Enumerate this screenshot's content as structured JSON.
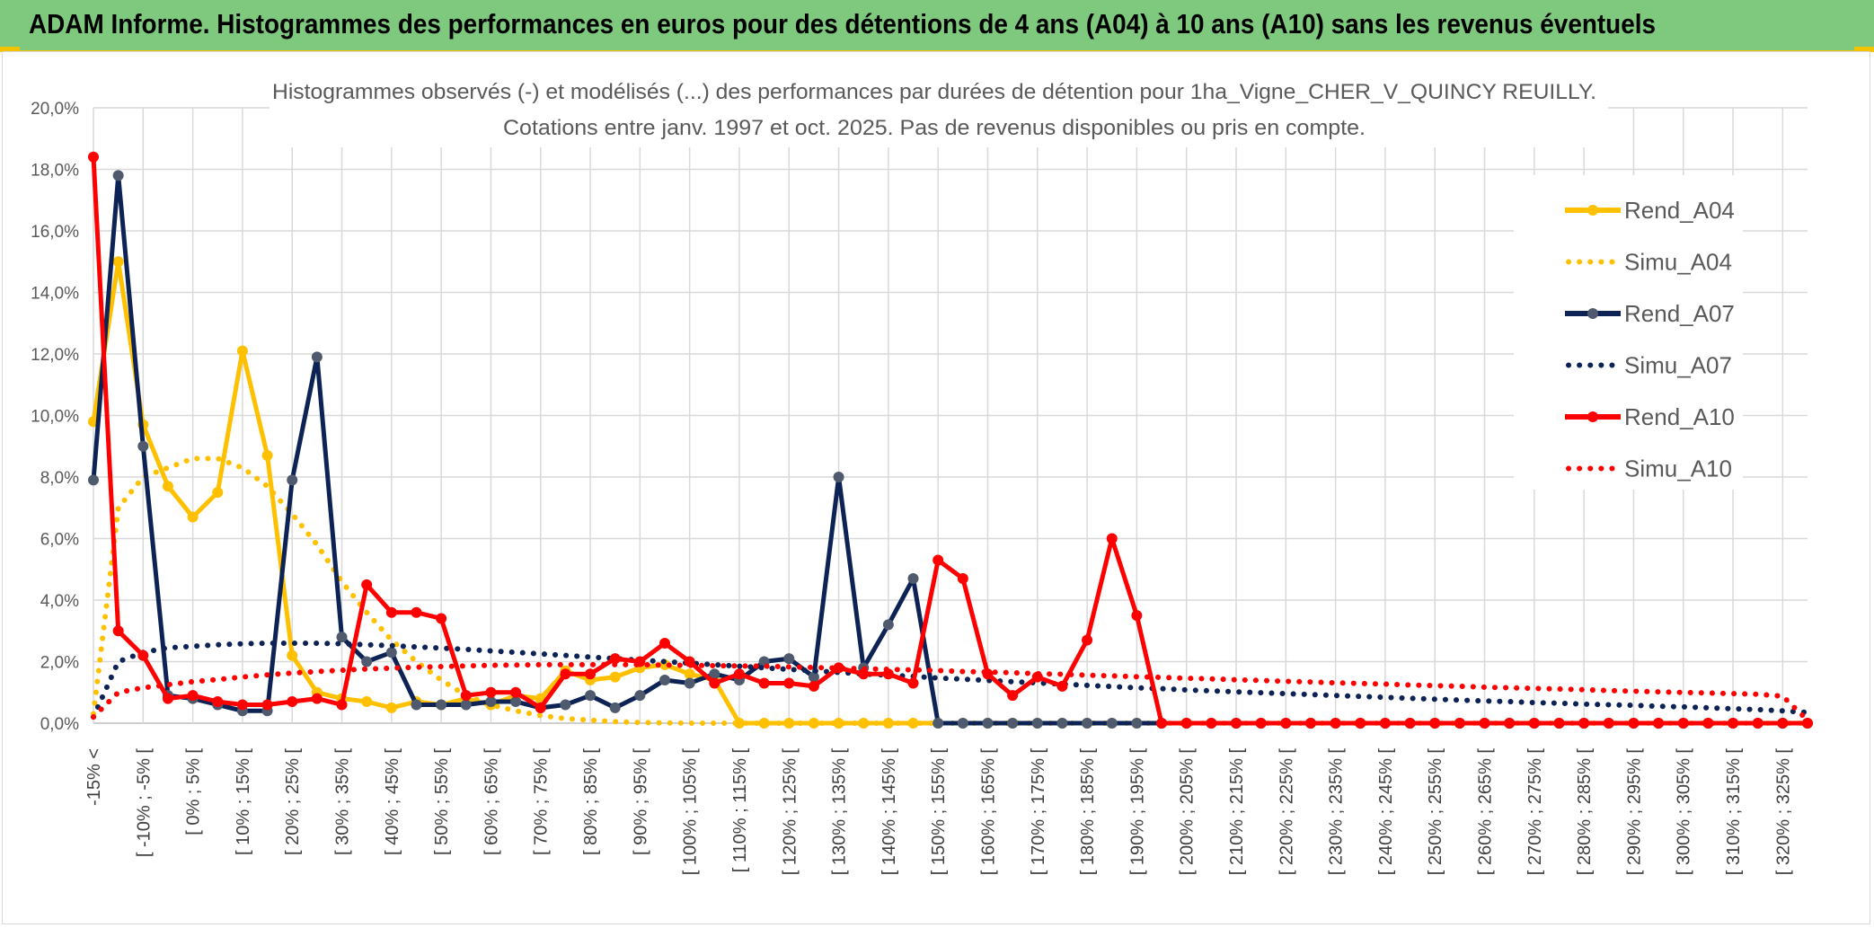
{
  "banner": {
    "title": "ADAM Informe. Histogrammes des performances en euros pour des détentions de 4 ans (A04) à 10 ans (A10) sans les revenus éventuels"
  },
  "chart_data": {
    "type": "line",
    "title_line1": "Histogrammes observés (-) et modélisés (...) des performances par durées de détention pour 1ha_Vigne_CHER_V_QUINCY REUILLY.",
    "title_line2": "Cotations entre janv. 1997 et oct. 2025. Pas de revenus disponibles ou pris en compte.",
    "ylim": [
      0,
      20
    ],
    "yticks": [
      "0,0%",
      "2,0%",
      "4,0%",
      "6,0%",
      "8,0%",
      "10,0%",
      "12,0%",
      "14,0%",
      "16,0%",
      "18,0%",
      "20,0%"
    ],
    "xtick_labels": [
      "-15% <",
      "[ -10% ; -5% [",
      "[ 0% ; 5% [",
      "[ 10% ; 15% [",
      "[ 20% ; 25% [",
      "[ 30% ; 35% [",
      "[ 40% ; 45% [",
      "[ 50% ; 55% [",
      "[ 60% ; 65% [",
      "[ 70% ; 75% [",
      "[ 80% ; 85% [",
      "[ 90% ; 95% [",
      "[ 100% ; 105% [",
      "[ 110% ; 115% [",
      "[ 120% ; 125% [",
      "[ 130% ; 135% [",
      "[ 140% ; 145% [",
      "[ 150% ; 155% [",
      "[ 160% ; 165% [",
      "[ 170% ; 175% [",
      "[ 180% ; 185% [",
      "[ 190% ; 195% [",
      "[ 200% ; 205% [",
      "[ 210% ; 215% [",
      "[ 220% ; 225% [",
      "[ 230% ; 235% [",
      "[ 240% ; 245% [",
      "[ 250% ; 255% [",
      "[ 260% ; 265% [",
      "[ 270% ; 275% [",
      "[ 280% ; 285% [",
      "[ 290% ; 295% [",
      "[ 300% ; 305% [",
      "[ 310% ; 315% [",
      "[ 320% ; 325% ["
    ],
    "n_points": 70,
    "legend_position": "right",
    "series": [
      {
        "name": "Rend_A04",
        "style": "solid",
        "markers": true,
        "color": "#ffc000",
        "marker_color": "#ffc000",
        "values": [
          9.8,
          15.0,
          9.7,
          7.7,
          6.7,
          7.5,
          12.1,
          8.7,
          2.2,
          1.0,
          0.8,
          0.7,
          0.5,
          0.7,
          0.6,
          0.8,
          0.6,
          0.9,
          0.8,
          1.7,
          1.4,
          1.5,
          1.8,
          1.9,
          1.6,
          1.4,
          0.0,
          0.0,
          0.0,
          0.0,
          0.0,
          0.0,
          0.0,
          0.0,
          0.0,
          0.0,
          0.0,
          0.0,
          0.0,
          0.0,
          0.0,
          0.0,
          0.0,
          0.0,
          0.0,
          0.0,
          0.0,
          0.0,
          0.0,
          0.0,
          0.0,
          0.0,
          0.0,
          0.0,
          0.0,
          0.0,
          0.0,
          0.0,
          0.0,
          0.0,
          0.0,
          0.0,
          0.0,
          0.0,
          0.0,
          0.0,
          0.0,
          0.0,
          0.0,
          0.0
        ]
      },
      {
        "name": "Simu_A04",
        "style": "dotted",
        "markers": false,
        "color": "#ffc000",
        "values": [
          0.3,
          7.0,
          8.0,
          8.3,
          8.6,
          8.6,
          8.3,
          7.7,
          6.8,
          5.8,
          4.6,
          3.6,
          2.7,
          2.0,
          1.4,
          0.9,
          0.6,
          0.4,
          0.25,
          0.15,
          0.1,
          0.05,
          0.02,
          0.01,
          0.0,
          0.0,
          0.0,
          0.0,
          0.0,
          0.0,
          0.0,
          0.0,
          0.0,
          0.0,
          0.0,
          0.0,
          0.0,
          0.0,
          0.0,
          0.0,
          0.0,
          0.0,
          0.0,
          0.0,
          0.0,
          0.0,
          0.0,
          0.0,
          0.0,
          0.0,
          0.0,
          0.0,
          0.0,
          0.0,
          0.0,
          0.0,
          0.0,
          0.0,
          0.0,
          0.0,
          0.0,
          0.0,
          0.0,
          0.0,
          0.0,
          0.0,
          0.0,
          0.0,
          0.0,
          0.0
        ]
      },
      {
        "name": "Rend_A07",
        "style": "solid",
        "markers": true,
        "color": "#0d2355",
        "marker_color": "#4f5a6e",
        "values": [
          7.9,
          17.8,
          9.0,
          0.9,
          0.8,
          0.6,
          0.4,
          0.4,
          7.9,
          11.9,
          2.8,
          2.0,
          2.3,
          0.6,
          0.6,
          0.6,
          0.7,
          0.7,
          0.5,
          0.6,
          0.9,
          0.5,
          0.9,
          1.4,
          1.3,
          1.6,
          1.4,
          2.0,
          2.1,
          1.5,
          8.0,
          1.8,
          3.2,
          4.7,
          0.0,
          0.0,
          0.0,
          0.0,
          0.0,
          0.0,
          0.0,
          0.0,
          0.0,
          0.0,
          0.0,
          0.0,
          0.0,
          0.0,
          0.0,
          0.0,
          0.0,
          0.0,
          0.0,
          0.0,
          0.0,
          0.0,
          0.0,
          0.0,
          0.0,
          0.0,
          0.0,
          0.0,
          0.0,
          0.0,
          0.0,
          0.0,
          0.0,
          0.0,
          0.0,
          0.0
        ]
      },
      {
        "name": "Simu_A07",
        "style": "dotted",
        "markers": false,
        "color": "#0d2355",
        "values": [
          0.2,
          2.0,
          2.3,
          2.45,
          2.5,
          2.55,
          2.58,
          2.6,
          2.6,
          2.6,
          2.58,
          2.55,
          2.52,
          2.48,
          2.44,
          2.4,
          2.35,
          2.3,
          2.25,
          2.2,
          2.15,
          2.1,
          2.05,
          2.0,
          1.95,
          1.9,
          1.85,
          1.8,
          1.75,
          1.7,
          1.65,
          1.6,
          1.56,
          1.52,
          1.47,
          1.43,
          1.39,
          1.35,
          1.31,
          1.27,
          1.23,
          1.19,
          1.15,
          1.12,
          1.08,
          1.05,
          1.02,
          0.99,
          0.96,
          0.93,
          0.9,
          0.87,
          0.84,
          0.81,
          0.78,
          0.75,
          0.72,
          0.7,
          0.67,
          0.65,
          0.62,
          0.6,
          0.58,
          0.55,
          0.53,
          0.5,
          0.47,
          0.44,
          0.4,
          0.35
        ]
      },
      {
        "name": "Rend_A10",
        "style": "solid",
        "markers": true,
        "color": "#ff0000",
        "marker_color": "#ff0000",
        "values": [
          18.4,
          3.0,
          2.2,
          0.8,
          0.9,
          0.7,
          0.6,
          0.6,
          0.7,
          0.8,
          0.6,
          4.5,
          3.6,
          3.6,
          3.4,
          0.9,
          1.0,
          1.0,
          0.5,
          1.6,
          1.6,
          2.1,
          2.0,
          2.6,
          2.0,
          1.3,
          1.6,
          1.3,
          1.3,
          1.2,
          1.8,
          1.6,
          1.6,
          1.3,
          5.3,
          4.7,
          1.6,
          0.9,
          1.5,
          1.2,
          2.7,
          6.0,
          3.5,
          0.0,
          0.0,
          0.0,
          0.0,
          0.0,
          0.0,
          0.0,
          0.0,
          0.0,
          0.0,
          0.0,
          0.0,
          0.0,
          0.0,
          0.0,
          0.0,
          0.0,
          0.0,
          0.0,
          0.0,
          0.0,
          0.0,
          0.0,
          0.0,
          0.0,
          0.0,
          0.0
        ]
      },
      {
        "name": "Simu_A10",
        "style": "dotted",
        "markers": false,
        "color": "#ff0000",
        "values": [
          0.2,
          1.0,
          1.15,
          1.25,
          1.35,
          1.42,
          1.5,
          1.57,
          1.63,
          1.68,
          1.72,
          1.76,
          1.79,
          1.82,
          1.84,
          1.86,
          1.88,
          1.89,
          1.9,
          1.9,
          1.9,
          1.9,
          1.9,
          1.89,
          1.88,
          1.87,
          1.86,
          1.85,
          1.83,
          1.81,
          1.79,
          1.77,
          1.75,
          1.73,
          1.71,
          1.68,
          1.66,
          1.64,
          1.61,
          1.59,
          1.56,
          1.54,
          1.51,
          1.49,
          1.46,
          1.44,
          1.41,
          1.39,
          1.36,
          1.34,
          1.31,
          1.29,
          1.27,
          1.24,
          1.22,
          1.2,
          1.17,
          1.15,
          1.13,
          1.11,
          1.09,
          1.06,
          1.04,
          1.02,
          1.0,
          0.98,
          0.96,
          0.94,
          0.88,
          0.1
        ]
      }
    ]
  }
}
